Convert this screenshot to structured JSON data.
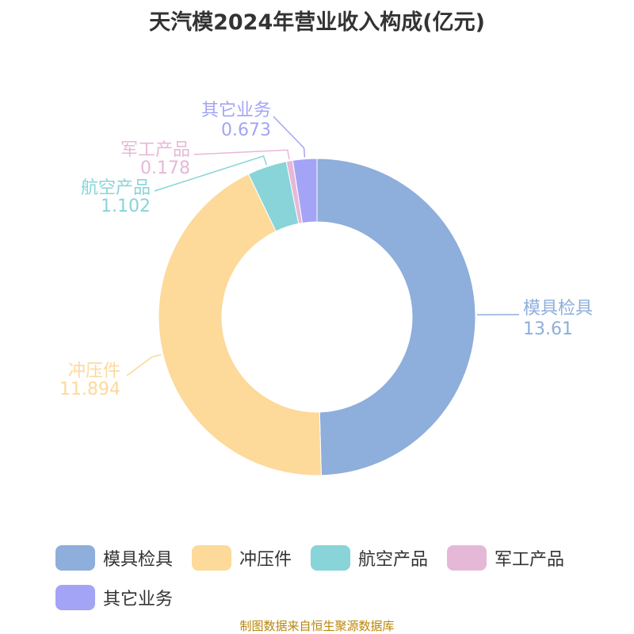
{
  "title": "天汽模2024年营业收入构成(亿元)",
  "source": "制图数据来自恒生聚源数据库",
  "chart_data": {
    "type": "pie",
    "donut": true,
    "title": "天汽模2024年营业收入构成(亿元)",
    "legend_position": "bottom",
    "series": [
      {
        "name": "模具检具",
        "value": 13.61,
        "value_label": "13.61",
        "color": "#8eaedb"
      },
      {
        "name": "冲压件",
        "value": 11.894,
        "value_label": "11.894",
        "color": "#fdd99a"
      },
      {
        "name": "航空产品",
        "value": 1.102,
        "value_label": "1.102",
        "color": "#88d4d8"
      },
      {
        "name": "军工产品",
        "value": 0.178,
        "value_label": "0.178",
        "color": "#e6b8d8"
      },
      {
        "name": "其它业务",
        "value": 0.673,
        "value_label": "0.673",
        "color": "#a3a4f5"
      }
    ]
  }
}
